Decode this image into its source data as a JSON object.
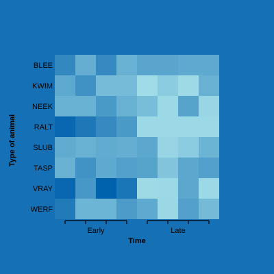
{
  "background_color": "#1670b5",
  "chart_data": {
    "type": "heatmap",
    "title": "",
    "xlabel": "Time",
    "ylabel": "Type of animal",
    "rows": [
      "BLEE",
      "KWIM",
      "NEEK",
      "RALT",
      "SLUB",
      "TASP",
      "VRAY",
      "WERF"
    ],
    "groups": [
      {
        "label": "Early",
        "columns": 4
      },
      {
        "label": "Late",
        "columns": 4
      }
    ],
    "color_scale": {
      "low": "#a8e2ea",
      "high": "#0061ad"
    },
    "values": [
      [
        0.7,
        0.4,
        0.68,
        0.38,
        0.47,
        0.47,
        0.44,
        0.44
      ],
      [
        0.45,
        0.62,
        0.3,
        0.3,
        0.05,
        0.17,
        0.06,
        0.38
      ],
      [
        0.38,
        0.38,
        0.56,
        0.38,
        0.28,
        0.07,
        0.49,
        0.09
      ],
      [
        0.95,
        0.82,
        0.68,
        0.56,
        0.07,
        0.07,
        0.07,
        0.07
      ],
      [
        0.43,
        0.38,
        0.43,
        0.4,
        0.46,
        0.1,
        0.17,
        0.36
      ],
      [
        0.38,
        0.61,
        0.44,
        0.51,
        0.49,
        0.23,
        0.46,
        0.51
      ],
      [
        0.95,
        0.57,
        1.0,
        0.84,
        0.06,
        0.07,
        0.46,
        0.07
      ],
      [
        0.8,
        0.35,
        0.35,
        0.55,
        0.44,
        0.08,
        0.51,
        0.31
      ]
    ]
  }
}
